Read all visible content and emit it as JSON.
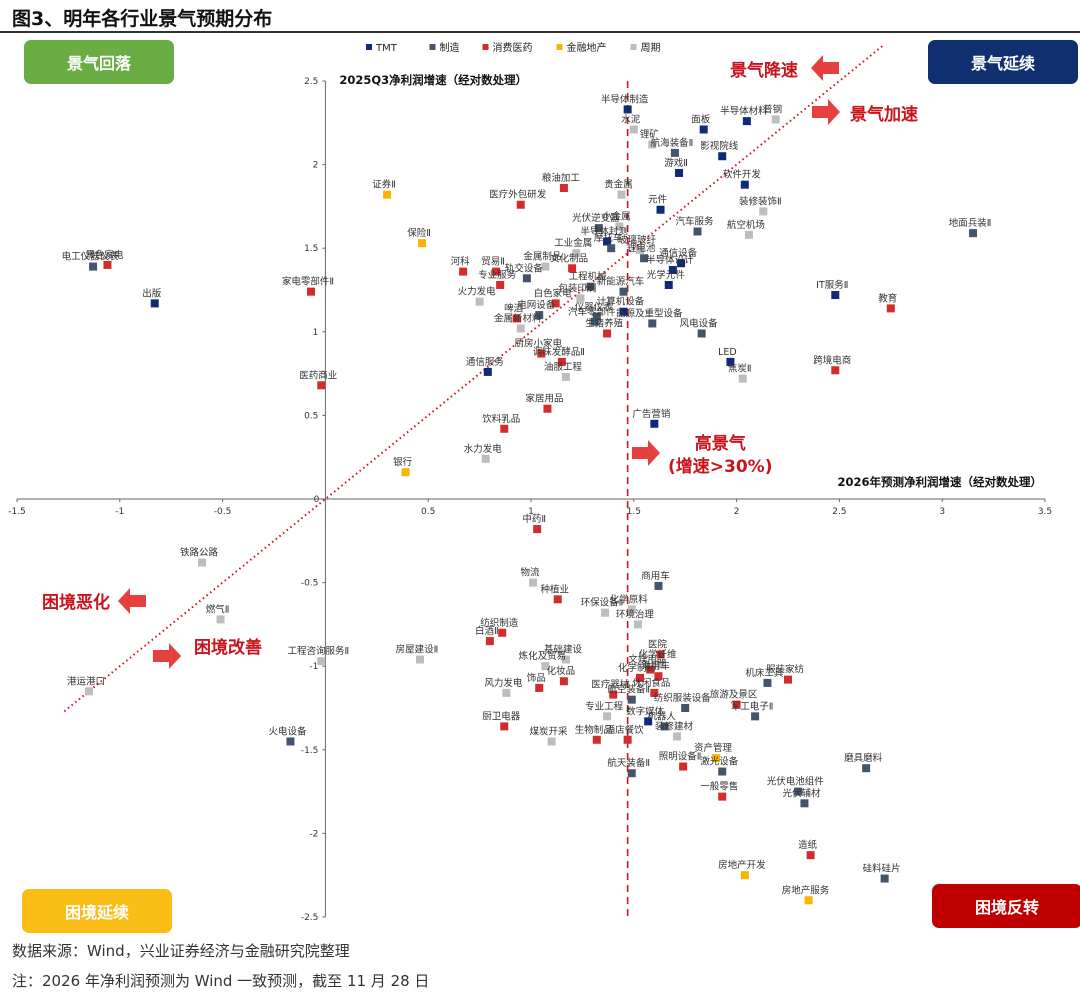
{
  "figure_title": "图3、明年各行业景气预期分布",
  "quadrants": {
    "top_left": "景气回落",
    "top_right": "景气延续",
    "bottom_left": "困境延续",
    "bottom_right": "困境反转"
  },
  "annotations": {
    "decline": "景气降速",
    "accelerate": "景气加速",
    "worsen": "困境恶化",
    "improve": "困境改善",
    "high_line1": "高景气",
    "high_line2": "(增速>30%)"
  },
  "notes": {
    "source": "数据来源：Wind，兴业证券经济与金融研究院整理",
    "note": "注：2026 年净利润预测为 Wind 一致预测，截至 11 月 28 日"
  },
  "colors": {
    "TMT": "#0e2a78",
    "制造": "#44546a",
    "消费医药": "#d42b2b",
    "金融地产": "#f7b400",
    "周期": "#bdbdbd",
    "reference": "#c9141c"
  },
  "chart_data": {
    "type": "scatter",
    "xlabel": "2026年预测净利润增速（经对数处理）",
    "ylabel": "2025Q3净利润增速（经对数处理）",
    "xlim": [
      -1.5,
      3.5
    ],
    "ylim": [
      -2.5,
      2.5
    ],
    "x_ticks": [
      "-1.5",
      "-1",
      "-0.5",
      "0",
      "0.5",
      "1",
      "1.5",
      "2",
      "2.5",
      "3",
      "3.5"
    ],
    "y_ticks": [
      "-2.5",
      "-2",
      "-1.5",
      "-1",
      "-0.5",
      "0.5",
      "1",
      "1.5",
      "2",
      "2.5"
    ],
    "x_tick_values": [
      -1.5,
      -1,
      -0.5,
      0,
      0.5,
      1,
      1.5,
      2,
      2.5,
      3,
      3.5
    ],
    "y_tick_values": [
      -2.5,
      -2,
      -1.5,
      -1,
      -0.5,
      0.5,
      1,
      1.5,
      2,
      2.5
    ],
    "origin_label": "0",
    "reference_x": 1.47,
    "diagonal": "y=x",
    "legend": [
      "TMT",
      "制造",
      "消费医药",
      "金融地产",
      "周期"
    ],
    "legend_position": "top",
    "points": [
      {
        "name": "半导体制造",
        "x": 1.47,
        "y": 2.33,
        "group": "TMT"
      },
      {
        "name": "水泥",
        "x": 1.5,
        "y": 2.21,
        "group": "周期"
      },
      {
        "name": "锂矿",
        "x": 1.59,
        "y": 2.12,
        "group": "周期"
      },
      {
        "name": "面板",
        "x": 1.84,
        "y": 2.21,
        "group": "TMT"
      },
      {
        "name": "半导体材料",
        "x": 2.05,
        "y": 2.26,
        "group": "TMT"
      },
      {
        "name": "普钢",
        "x": 2.19,
        "y": 2.27,
        "group": "周期"
      },
      {
        "name": "航海装备Ⅱ",
        "x": 1.7,
        "y": 2.07,
        "group": "制造"
      },
      {
        "name": "影视院线",
        "x": 1.93,
        "y": 2.05,
        "group": "TMT"
      },
      {
        "name": "游戏Ⅱ",
        "x": 1.72,
        "y": 1.95,
        "group": "TMT"
      },
      {
        "name": "粮油加工",
        "x": 1.16,
        "y": 1.86,
        "group": "消费医药"
      },
      {
        "name": "证券Ⅱ",
        "x": 0.3,
        "y": 1.82,
        "group": "金融地产"
      },
      {
        "name": "贵金属",
        "x": 1.44,
        "y": 1.82,
        "group": "周期"
      },
      {
        "name": "医疗外包研发",
        "x": 0.95,
        "y": 1.76,
        "group": "消费医药"
      },
      {
        "name": "软件开发",
        "x": 2.04,
        "y": 1.88,
        "group": "TMT"
      },
      {
        "name": "元件",
        "x": 1.63,
        "y": 1.73,
        "group": "TMT"
      },
      {
        "name": "装修装饰Ⅱ",
        "x": 2.13,
        "y": 1.72,
        "group": "周期"
      },
      {
        "name": "地面兵装Ⅱ",
        "x": 3.15,
        "y": 1.59,
        "group": "制造"
      },
      {
        "name": "光伏逆变器",
        "x": 1.33,
        "y": 1.62,
        "group": "制造"
      },
      {
        "name": "小金属",
        "x": 1.43,
        "y": 1.63,
        "group": "周期"
      },
      {
        "name": "汽车服务",
        "x": 1.81,
        "y": 1.6,
        "group": "制造"
      },
      {
        "name": "航空机场",
        "x": 2.06,
        "y": 1.58,
        "group": "周期"
      },
      {
        "name": "保险Ⅱ",
        "x": 0.47,
        "y": 1.53,
        "group": "金融地产"
      },
      {
        "name": "半导体封测",
        "x": 1.37,
        "y": 1.54,
        "group": "TMT"
      },
      {
        "name": "摩托车",
        "x": 1.39,
        "y": 1.5,
        "group": "制造"
      },
      {
        "name": "玻璃玻纤",
        "x": 1.53,
        "y": 1.49,
        "group": "周期"
      },
      {
        "name": "锂电池",
        "x": 1.55,
        "y": 1.44,
        "group": "制造"
      },
      {
        "name": "通信设备",
        "x": 1.73,
        "y": 1.41,
        "group": "TMT"
      },
      {
        "name": "工业金属",
        "x": 1.22,
        "y": 1.47,
        "group": "周期"
      },
      {
        "name": "金属制品",
        "x": 1.07,
        "y": 1.39,
        "group": "周期"
      },
      {
        "name": "文化制品",
        "x": 1.2,
        "y": 1.38,
        "group": "消费医药"
      },
      {
        "name": "半导体设计",
        "x": 1.69,
        "y": 1.37,
        "group": "TMT"
      },
      {
        "name": "黑色家电",
        "x": -1.06,
        "y": 1.4,
        "group": "消费医药"
      },
      {
        "name": "电工仪器仪表",
        "x": -1.13,
        "y": 1.39,
        "group": "制造"
      },
      {
        "name": "河科",
        "x": 0.67,
        "y": 1.36,
        "group": "消费医药"
      },
      {
        "name": "贸易Ⅱ",
        "x": 0.83,
        "y": 1.36,
        "group": "消费医药"
      },
      {
        "name": "轨交设备",
        "x": 0.98,
        "y": 1.32,
        "group": "制造"
      },
      {
        "name": "家电零部件Ⅱ",
        "x": -0.07,
        "y": 1.24,
        "group": "消费医药"
      },
      {
        "name": "光学元件",
        "x": 1.67,
        "y": 1.28,
        "group": "TMT"
      },
      {
        "name": "工程机械",
        "x": 1.29,
        "y": 1.27,
        "group": "制造"
      },
      {
        "name": "专业服务",
        "x": 0.85,
        "y": 1.28,
        "group": "消费医药"
      },
      {
        "name": "新能源汽车",
        "x": 1.45,
        "y": 1.24,
        "group": "制造"
      },
      {
        "name": "包装印刷",
        "x": 1.24,
        "y": 1.2,
        "group": "周期"
      },
      {
        "name": "出版",
        "x": -0.83,
        "y": 1.17,
        "group": "TMT"
      },
      {
        "name": "IT服务Ⅱ",
        "x": 2.48,
        "y": 1.22,
        "group": "TMT"
      },
      {
        "name": "教育",
        "x": 2.75,
        "y": 1.14,
        "group": "消费医药"
      },
      {
        "name": "火力发电",
        "x": 0.75,
        "y": 1.18,
        "group": "周期"
      },
      {
        "name": "白色家电",
        "x": 1.12,
        "y": 1.17,
        "group": "消费医药"
      },
      {
        "name": "啤酒",
        "x": 0.93,
        "y": 1.08,
        "group": "消费医药"
      },
      {
        "name": "电网设备",
        "x": 1.04,
        "y": 1.1,
        "group": "制造"
      },
      {
        "name": "仪器仪表",
        "x": 1.32,
        "y": 1.09,
        "group": "制造"
      },
      {
        "name": "计算机设备",
        "x": 1.45,
        "y": 1.12,
        "group": "TMT"
      },
      {
        "name": "汽车零部件",
        "x": 1.31,
        "y": 1.06,
        "group": "制造"
      },
      {
        "name": "能源及重型设备",
        "x": 1.59,
        "y": 1.05,
        "group": "制造"
      },
      {
        "name": "金属新材料",
        "x": 0.95,
        "y": 1.02,
        "group": "周期"
      },
      {
        "name": "风电设备",
        "x": 1.83,
        "y": 0.99,
        "group": "制造"
      },
      {
        "name": "生猪养殖",
        "x": 1.37,
        "y": 0.99,
        "group": "消费医药"
      },
      {
        "name": "厨房小家电",
        "x": 1.05,
        "y": 0.87,
        "group": "消费医药"
      },
      {
        "name": "LED",
        "x": 1.97,
        "y": 0.82,
        "group": "TMT"
      },
      {
        "name": "调味发酵品Ⅱ",
        "x": 1.15,
        "y": 0.82,
        "group": "消费医药"
      },
      {
        "name": "跨境电商",
        "x": 2.48,
        "y": 0.77,
        "group": "消费医药"
      },
      {
        "name": "医药商业",
        "x": -0.02,
        "y": 0.68,
        "group": "消费医药"
      },
      {
        "name": "通信服务",
        "x": 0.79,
        "y": 0.76,
        "group": "TMT"
      },
      {
        "name": "焦炭Ⅱ",
        "x": 2.03,
        "y": 0.72,
        "group": "周期"
      },
      {
        "name": "油服工程",
        "x": 1.17,
        "y": 0.73,
        "group": "周期"
      },
      {
        "name": "家居用品",
        "x": 1.08,
        "y": 0.54,
        "group": "消费医药"
      },
      {
        "name": "广告营销",
        "x": 1.6,
        "y": 0.45,
        "group": "TMT"
      },
      {
        "name": "饮料乳品",
        "x": 0.87,
        "y": 0.42,
        "group": "消费医药"
      },
      {
        "name": "水力发电",
        "x": 0.78,
        "y": 0.24,
        "group": "周期"
      },
      {
        "name": "银行",
        "x": 0.39,
        "y": 0.16,
        "group": "金融地产"
      },
      {
        "name": "中药Ⅱ",
        "x": 1.03,
        "y": -0.18,
        "group": "消费医药"
      },
      {
        "name": "铁路公路",
        "x": -0.6,
        "y": -0.38,
        "group": "周期"
      },
      {
        "name": "物流",
        "x": 1.01,
        "y": -0.5,
        "group": "周期"
      },
      {
        "name": "商用车",
        "x": 1.62,
        "y": -0.52,
        "group": "制造"
      },
      {
        "name": "燃气Ⅱ",
        "x": -0.51,
        "y": -0.72,
        "group": "周期"
      },
      {
        "name": "种植业",
        "x": 1.13,
        "y": -0.6,
        "group": "消费医药"
      },
      {
        "name": "环保设备Ⅱ",
        "x": 1.36,
        "y": -0.68,
        "group": "周期"
      },
      {
        "name": "化学原料",
        "x": 1.49,
        "y": -0.66,
        "group": "周期"
      },
      {
        "name": "环境治理",
        "x": 1.52,
        "y": -0.75,
        "group": "周期"
      },
      {
        "name": "纺织制造",
        "x": 0.86,
        "y": -0.8,
        "group": "消费医药"
      },
      {
        "name": "白酒Ⅱ",
        "x": 0.8,
        "y": -0.85,
        "group": "消费医药"
      },
      {
        "name": "房屋建设Ⅱ",
        "x": 0.46,
        "y": -0.96,
        "group": "周期"
      },
      {
        "name": "工程咨询服务Ⅱ",
        "x": -0.02,
        "y": -0.97,
        "group": "周期"
      },
      {
        "name": "基础建设",
        "x": 1.17,
        "y": -0.96,
        "group": "周期"
      },
      {
        "name": "医院",
        "x": 1.63,
        "y": -0.93,
        "group": "消费医药"
      },
      {
        "name": "炼化及贸易",
        "x": 1.07,
        "y": -1.0,
        "group": "周期"
      },
      {
        "name": "化学纤维",
        "x": 1.63,
        "y": -0.99,
        "group": "周期"
      },
      {
        "name": "文娱用品",
        "x": 1.58,
        "y": -1.02,
        "group": "消费医药"
      },
      {
        "name": "化学制药",
        "x": 1.53,
        "y": -1.07,
        "group": "消费医药"
      },
      {
        "name": "乘用车",
        "x": 1.62,
        "y": -1.06,
        "group": "消费医药"
      },
      {
        "name": "服装家纺",
        "x": 2.25,
        "y": -1.08,
        "group": "消费医药"
      },
      {
        "name": "机床工具",
        "x": 2.15,
        "y": -1.1,
        "group": "制造"
      },
      {
        "name": "港运港口",
        "x": -1.15,
        "y": -1.15,
        "group": "周期"
      },
      {
        "name": "风力发电",
        "x": 0.88,
        "y": -1.16,
        "group": "周期"
      },
      {
        "name": "化妆品",
        "x": 1.16,
        "y": -1.09,
        "group": "消费医药"
      },
      {
        "name": "饰品",
        "x": 1.04,
        "y": -1.13,
        "group": "消费医药"
      },
      {
        "name": "医疗器械",
        "x": 1.4,
        "y": -1.17,
        "group": "消费医药"
      },
      {
        "name": "休闲食品",
        "x": 1.6,
        "y": -1.16,
        "group": "消费医药"
      },
      {
        "name": "纺织服装设备",
        "x": 1.75,
        "y": -1.25,
        "group": "制造"
      },
      {
        "name": "旅游及景区",
        "x": 2.0,
        "y": -1.23,
        "group": "消费医药"
      },
      {
        "name": "航空装备Ⅱ",
        "x": 1.49,
        "y": -1.2,
        "group": "制造"
      },
      {
        "name": "军工电子Ⅱ",
        "x": 2.09,
        "y": -1.3,
        "group": "制造"
      },
      {
        "name": "专业工程",
        "x": 1.37,
        "y": -1.3,
        "group": "周期"
      },
      {
        "name": "数字媒体",
        "x": 1.57,
        "y": -1.33,
        "group": "TMT"
      },
      {
        "name": "机器人",
        "x": 1.65,
        "y": -1.36,
        "group": "制造"
      },
      {
        "name": "装修建材",
        "x": 1.71,
        "y": -1.42,
        "group": "周期"
      },
      {
        "name": "火电设备",
        "x": -0.17,
        "y": -1.45,
        "group": "制造"
      },
      {
        "name": "厨卫电器",
        "x": 0.87,
        "y": -1.36,
        "group": "消费医药"
      },
      {
        "name": "煤炭开采",
        "x": 1.1,
        "y": -1.45,
        "group": "周期"
      },
      {
        "name": "生物制品",
        "x": 1.32,
        "y": -1.44,
        "group": "消费医药"
      },
      {
        "name": "酒店餐饮",
        "x": 1.47,
        "y": -1.44,
        "group": "消费医药"
      },
      {
        "name": "资产管理",
        "x": 1.9,
        "y": -1.55,
        "group": "金融地产"
      },
      {
        "name": "照明设备Ⅱ",
        "x": 1.74,
        "y": -1.6,
        "group": "消费医药"
      },
      {
        "name": "航天装备Ⅱ",
        "x": 1.49,
        "y": -1.64,
        "group": "制造"
      },
      {
        "name": "激光设备",
        "x": 1.93,
        "y": -1.63,
        "group": "制造"
      },
      {
        "name": "磨具磨料",
        "x": 2.63,
        "y": -1.61,
        "group": "制造"
      },
      {
        "name": "光伏电池组件",
        "x": 2.3,
        "y": -1.75,
        "group": "制造"
      },
      {
        "name": "一般零售",
        "x": 1.93,
        "y": -1.78,
        "group": "消费医药"
      },
      {
        "name": "光伏辅材",
        "x": 2.33,
        "y": -1.82,
        "group": "制造"
      },
      {
        "name": "造纸",
        "x": 2.36,
        "y": -2.13,
        "group": "消费医药"
      },
      {
        "name": "房地产开发",
        "x": 2.04,
        "y": -2.25,
        "group": "金融地产"
      },
      {
        "name": "硅料硅片",
        "x": 2.72,
        "y": -2.27,
        "group": "制造"
      },
      {
        "name": "房地产服务",
        "x": 2.35,
        "y": -2.4,
        "group": "金融地产"
      }
    ]
  }
}
